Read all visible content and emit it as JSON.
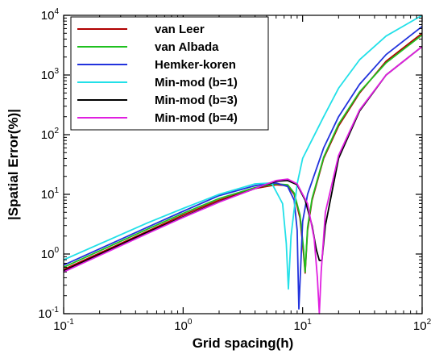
{
  "chart_data": {
    "type": "line",
    "title": "",
    "xlabel": "Grid spacing(h)",
    "ylabel": "|Spatial Error(%)|",
    "xscale": "log",
    "yscale": "log",
    "xlim": [
      0.1,
      100
    ],
    "ylim": [
      0.1,
      10000
    ],
    "grid": false,
    "legend_position": "top-left",
    "x_ticks": [
      {
        "base": "10",
        "exp": "-1",
        "value": 0.1
      },
      {
        "base": "10",
        "exp": "0",
        "value": 1
      },
      {
        "base": "10",
        "exp": "1",
        "value": 10
      },
      {
        "base": "10",
        "exp": "2",
        "value": 100
      }
    ],
    "y_ticks": [
      {
        "base": "10",
        "exp": "-1",
        "value": 0.1
      },
      {
        "base": "10",
        "exp": "0",
        "value": 1
      },
      {
        "base": "10",
        "exp": "1",
        "value": 10
      },
      {
        "base": "10",
        "exp": "2",
        "value": 100
      },
      {
        "base": "10",
        "exp": "3",
        "value": 1000
      },
      {
        "base": "10",
        "exp": "4",
        "value": 10000
      }
    ],
    "series": [
      {
        "name": "van Leer",
        "color": "#b00000",
        "x": [
          0.1,
          0.5,
          1,
          2,
          4,
          6,
          7.5,
          8.5,
          9.5,
          10.2,
          10.5,
          11,
          12,
          15,
          20,
          30,
          50,
          100
        ],
        "y": [
          0.55,
          2.4,
          4.5,
          8,
          12.5,
          14.5,
          14,
          10,
          4,
          1.0,
          0.48,
          2.5,
          8,
          40,
          140,
          500,
          1700,
          5000
        ]
      },
      {
        "name": "van Albada",
        "color": "#1fc01f",
        "x": [
          0.1,
          0.5,
          1,
          2,
          4,
          6,
          7.5,
          8.5,
          9.5,
          10.2,
          10.5,
          11,
          12,
          15,
          20,
          30,
          50,
          100
        ],
        "y": [
          0.6,
          2.6,
          4.8,
          8.5,
          13,
          15,
          14.5,
          10.5,
          4.5,
          1.2,
          0.5,
          2.8,
          8.5,
          42,
          150,
          520,
          1600,
          4700
        ]
      },
      {
        "name": "Hemker-koren",
        "color": "#2233dd",
        "x": [
          0.1,
          0.5,
          1,
          2,
          4,
          6,
          7.5,
          8.5,
          9.0,
          9.3,
          10,
          11,
          15,
          20,
          30,
          50,
          100
        ],
        "y": [
          0.65,
          2.8,
          5.2,
          9.5,
          14,
          15.5,
          13.5,
          8,
          2.5,
          0.12,
          3.5,
          10,
          60,
          200,
          700,
          2200,
          6500
        ]
      },
      {
        "name": "Min-mod (b=1)",
        "color": "#22e0e8",
        "x": [
          0.1,
          0.5,
          1,
          2,
          4,
          5.5,
          6.8,
          7.3,
          7.6,
          8.0,
          9,
          10,
          15,
          20,
          30,
          50,
          100
        ],
        "y": [
          0.8,
          3.3,
          5.8,
          10,
          15,
          15.5,
          7,
          1.5,
          0.26,
          2,
          15,
          40,
          200,
          600,
          1800,
          4500,
          10000
        ]
      },
      {
        "name": "Min-mod (b=3)",
        "color": "#000000",
        "x": [
          0.1,
          0.5,
          1,
          2,
          4,
          6,
          7.5,
          9,
          10.5,
          12,
          13,
          13.8,
          14.5,
          15.5,
          20,
          30,
          50,
          100
        ],
        "y": [
          0.52,
          2.3,
          4.2,
          7.5,
          12.5,
          16.5,
          17,
          14.5,
          8,
          3,
          1.2,
          0.78,
          0.78,
          3,
          40,
          250,
          1000,
          3000
        ]
      },
      {
        "name": "Min-mod (b=4)",
        "color": "#e020e0",
        "x": [
          0.1,
          0.5,
          1,
          2,
          4,
          6,
          7.5,
          9,
          11,
          12.5,
          13.3,
          13.8,
          14.3,
          15.5,
          20,
          30,
          50,
          100
        ],
        "y": [
          0.5,
          2.2,
          4.1,
          7.4,
          12.5,
          17,
          18,
          15,
          7,
          1.8,
          0.4,
          0.1,
          0.5,
          5,
          45,
          260,
          1000,
          3000
        ]
      }
    ]
  }
}
